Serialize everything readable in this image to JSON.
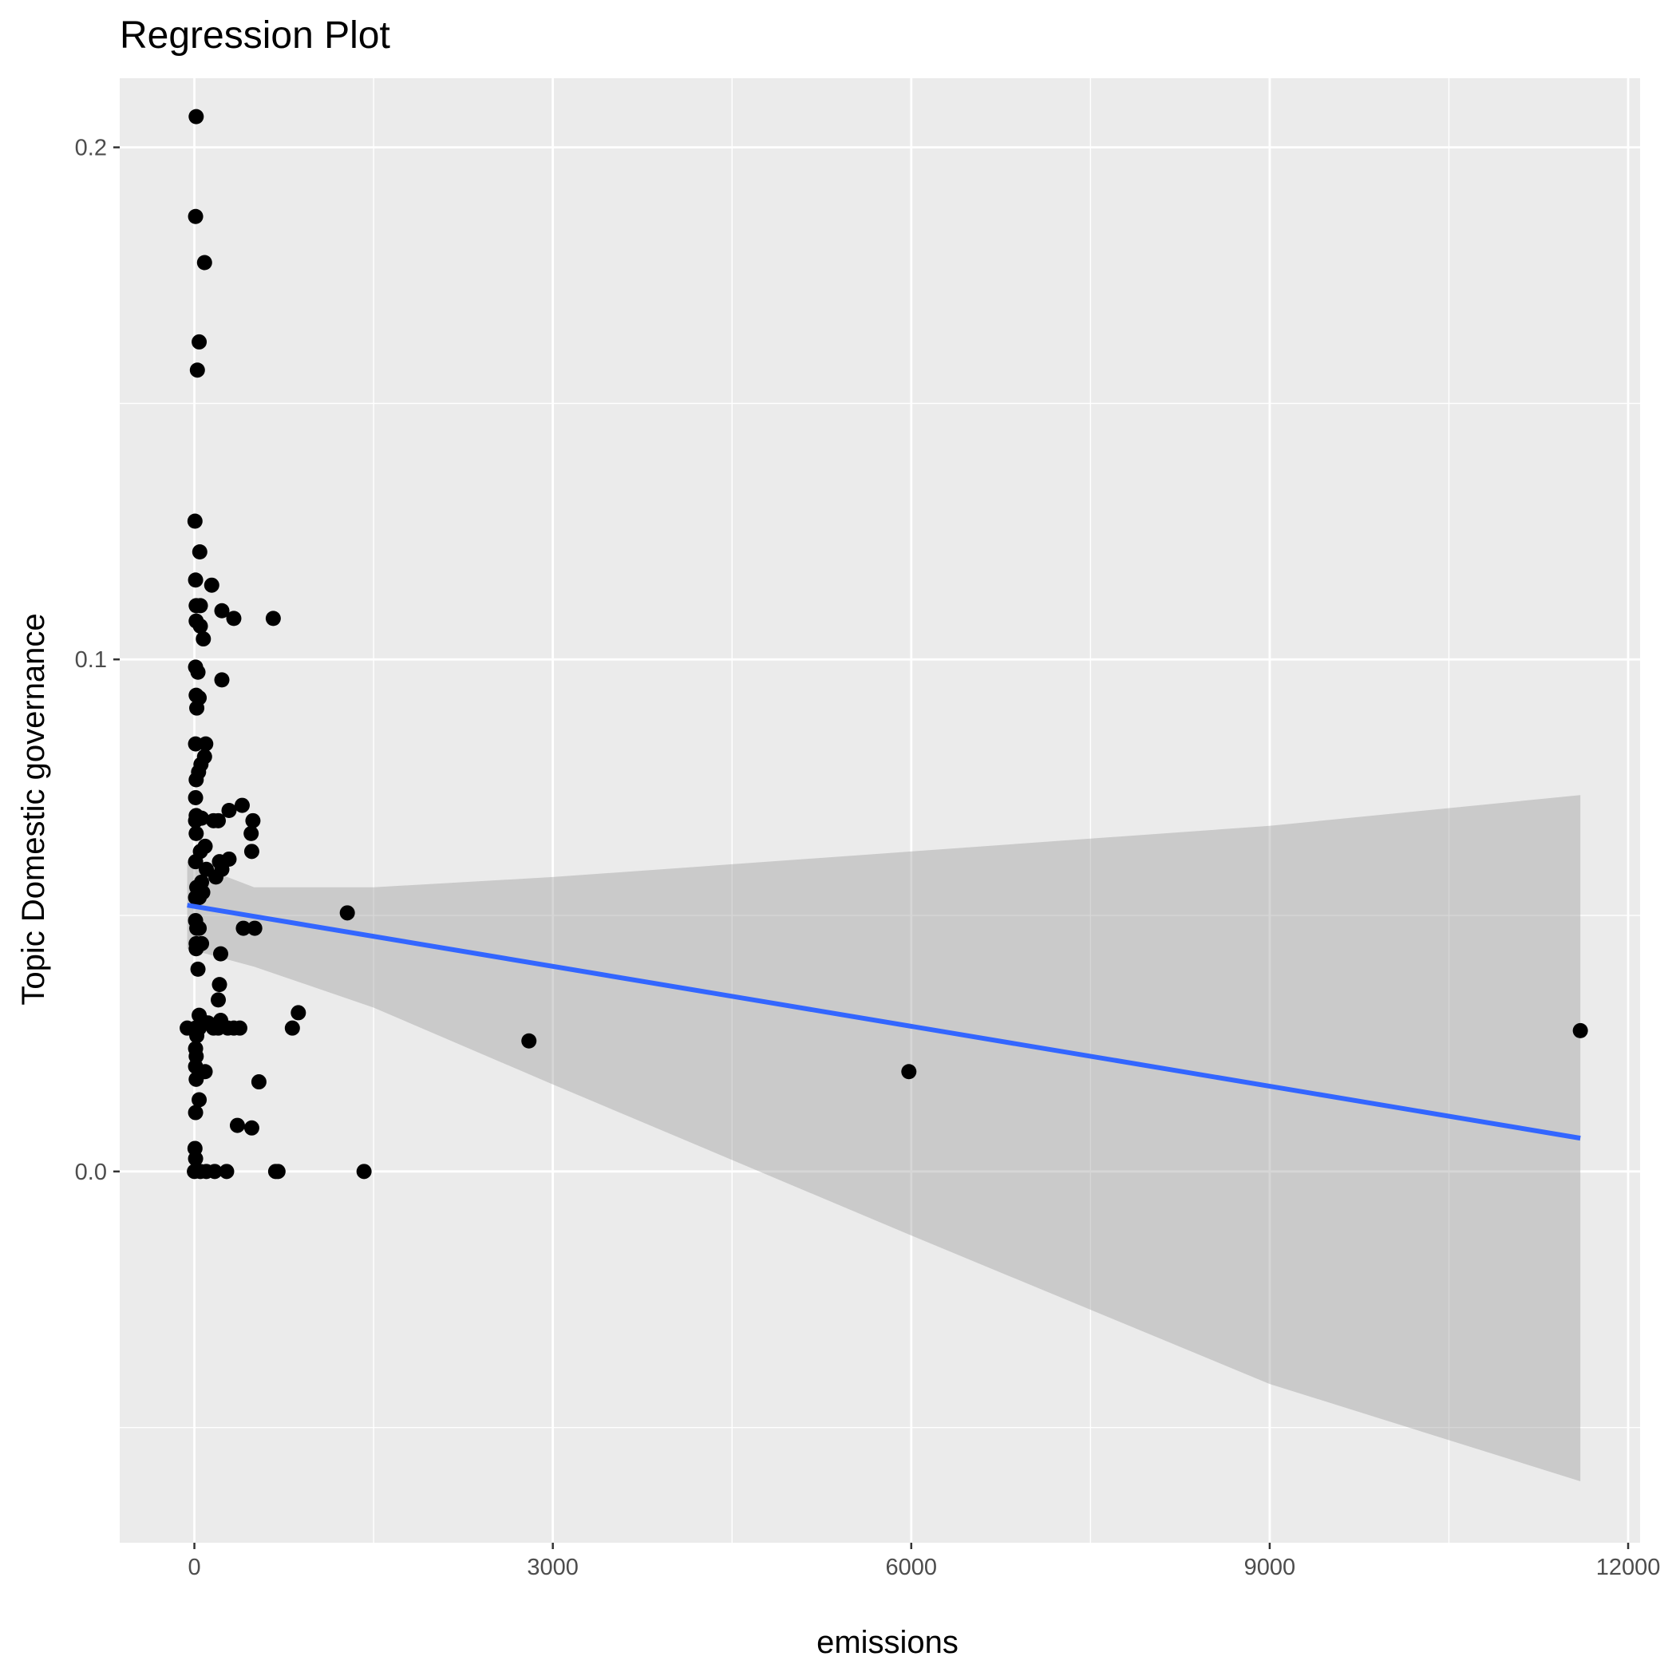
{
  "chart_data": {
    "type": "scatter",
    "title": "Regression Plot",
    "xlabel": "emissions",
    "ylabel": "Topic Domestic governance",
    "xlim": [
      -625,
      12100
    ],
    "ylim": [
      -0.0725,
      0.2135
    ],
    "x_ticks": [
      0,
      3000,
      6000,
      9000,
      12000
    ],
    "x_tick_labels": [
      "0",
      "3000",
      "6000",
      "9000",
      "12000"
    ],
    "y_ticks": [
      0.0,
      0.1,
      0.2
    ],
    "y_tick_labels": [
      "0.0",
      "0.1",
      "0.2"
    ],
    "x_minor_grid": [
      1500,
      4500,
      7500,
      10500
    ],
    "y_minor_grid": [
      -0.05,
      0.05,
      0.15
    ],
    "grid": true,
    "colors": {
      "panel": "#ebebeb",
      "grid": "#ffffff",
      "points": "#000000",
      "fit_line": "#3366ff",
      "ribbon": "#999999",
      "tick": "#333333"
    },
    "points": [
      {
        "x": 15,
        "y": 0.206
      },
      {
        "x": 10,
        "y": 0.1865
      },
      {
        "x": 85,
        "y": 0.1775
      },
      {
        "x": 40,
        "y": 0.162
      },
      {
        "x": 25,
        "y": 0.1565
      },
      {
        "x": 5,
        "y": 0.127
      },
      {
        "x": 45,
        "y": 0.121
      },
      {
        "x": 10,
        "y": 0.1155
      },
      {
        "x": 145,
        "y": 0.1145
      },
      {
        "x": 15,
        "y": 0.1105
      },
      {
        "x": 50,
        "y": 0.1105
      },
      {
        "x": 230,
        "y": 0.1095
      },
      {
        "x": 330,
        "y": 0.108
      },
      {
        "x": 660,
        "y": 0.108
      },
      {
        "x": 15,
        "y": 0.1075
      },
      {
        "x": 50,
        "y": 0.1065
      },
      {
        "x": 75,
        "y": 0.104
      },
      {
        "x": 10,
        "y": 0.0985
      },
      {
        "x": 30,
        "y": 0.0975
      },
      {
        "x": 230,
        "y": 0.096
      },
      {
        "x": 15,
        "y": 0.093
      },
      {
        "x": 40,
        "y": 0.0925
      },
      {
        "x": 20,
        "y": 0.0905
      },
      {
        "x": 10,
        "y": 0.0835
      },
      {
        "x": 95,
        "y": 0.0835
      },
      {
        "x": 85,
        "y": 0.081
      },
      {
        "x": 55,
        "y": 0.0795
      },
      {
        "x": 35,
        "y": 0.078
      },
      {
        "x": 15,
        "y": 0.0765
      },
      {
        "x": 10,
        "y": 0.073
      },
      {
        "x": 400,
        "y": 0.0715
      },
      {
        "x": 290,
        "y": 0.0705
      },
      {
        "x": 15,
        "y": 0.0695
      },
      {
        "x": 60,
        "y": 0.069
      },
      {
        "x": 10,
        "y": 0.0685
      },
      {
        "x": 160,
        "y": 0.0685
      },
      {
        "x": 200,
        "y": 0.0685
      },
      {
        "x": 490,
        "y": 0.0685
      },
      {
        "x": 15,
        "y": 0.066
      },
      {
        "x": 475,
        "y": 0.066
      },
      {
        "x": 90,
        "y": 0.0635
      },
      {
        "x": 50,
        "y": 0.0625
      },
      {
        "x": 480,
        "y": 0.0625
      },
      {
        "x": 290,
        "y": 0.061
      },
      {
        "x": 10,
        "y": 0.0605
      },
      {
        "x": 210,
        "y": 0.0605
      },
      {
        "x": 230,
        "y": 0.059
      },
      {
        "x": 100,
        "y": 0.059
      },
      {
        "x": 180,
        "y": 0.0575
      },
      {
        "x": 60,
        "y": 0.0565
      },
      {
        "x": 20,
        "y": 0.0555
      },
      {
        "x": 10,
        "y": 0.0535
      },
      {
        "x": 70,
        "y": 0.0545
      },
      {
        "x": 40,
        "y": 0.0535
      },
      {
        "x": 1280,
        "y": 0.0505
      },
      {
        "x": 10,
        "y": 0.049
      },
      {
        "x": 20,
        "y": 0.0475
      },
      {
        "x": 410,
        "y": 0.0475
      },
      {
        "x": 505,
        "y": 0.0475
      },
      {
        "x": 40,
        "y": 0.0475
      },
      {
        "x": 15,
        "y": 0.0445
      },
      {
        "x": 60,
        "y": 0.0445
      },
      {
        "x": 15,
        "y": 0.0435
      },
      {
        "x": 220,
        "y": 0.0425
      },
      {
        "x": 30,
        "y": 0.0395
      },
      {
        "x": 210,
        "y": 0.0365
      },
      {
        "x": 200,
        "y": 0.0335
      },
      {
        "x": 870,
        "y": 0.031
      },
      {
        "x": 40,
        "y": 0.0305
      },
      {
        "x": 60,
        "y": 0.0295
      },
      {
        "x": 115,
        "y": 0.029
      },
      {
        "x": 220,
        "y": 0.0295
      },
      {
        "x": -60,
        "y": 0.028
      },
      {
        "x": 10,
        "y": 0.028
      },
      {
        "x": 40,
        "y": 0.028
      },
      {
        "x": 160,
        "y": 0.028
      },
      {
        "x": 200,
        "y": 0.028
      },
      {
        "x": 280,
        "y": 0.028
      },
      {
        "x": 330,
        "y": 0.028
      },
      {
        "x": 380,
        "y": 0.028
      },
      {
        "x": 820,
        "y": 0.028
      },
      {
        "x": 20,
        "y": 0.0265
      },
      {
        "x": 2800,
        "y": 0.0255
      },
      {
        "x": 11600,
        "y": 0.0275
      },
      {
        "x": 10,
        "y": 0.024
      },
      {
        "x": 15,
        "y": 0.0225
      },
      {
        "x": 10,
        "y": 0.0205
      },
      {
        "x": 90,
        "y": 0.0195
      },
      {
        "x": 5980,
        "y": 0.0195
      },
      {
        "x": 15,
        "y": 0.018
      },
      {
        "x": 540,
        "y": 0.0175
      },
      {
        "x": 40,
        "y": 0.014
      },
      {
        "x": 10,
        "y": 0.0115
      },
      {
        "x": 360,
        "y": 0.009
      },
      {
        "x": 480,
        "y": 0.0085
      },
      {
        "x": 5,
        "y": 0.0045
      },
      {
        "x": 10,
        "y": 0.0025
      },
      {
        "x": 0,
        "y": 0.0
      },
      {
        "x": 50,
        "y": 0.0
      },
      {
        "x": 100,
        "y": 0.0
      },
      {
        "x": 170,
        "y": 0.0
      },
      {
        "x": 270,
        "y": 0.0
      },
      {
        "x": 680,
        "y": 0.0
      },
      {
        "x": 700,
        "y": 0.0
      },
      {
        "x": 1420,
        "y": 0.0
      }
    ],
    "fit_line": [
      {
        "x": -60,
        "y": 0.052
      },
      {
        "x": 11600,
        "y": 0.0065
      }
    ],
    "confidence_band": [
      {
        "x": -60,
        "lower": 0.0435,
        "upper": 0.0605
      },
      {
        "x": 500,
        "lower": 0.04,
        "upper": 0.0555
      },
      {
        "x": 1500,
        "lower": 0.032,
        "upper": 0.0555
      },
      {
        "x": 3000,
        "lower": 0.017,
        "upper": 0.0575
      },
      {
        "x": 6000,
        "lower": -0.0125,
        "upper": 0.0625
      },
      {
        "x": 9000,
        "lower": -0.0415,
        "upper": 0.0675
      },
      {
        "x": 11600,
        "lower": -0.0605,
        "upper": 0.0735
      }
    ]
  }
}
